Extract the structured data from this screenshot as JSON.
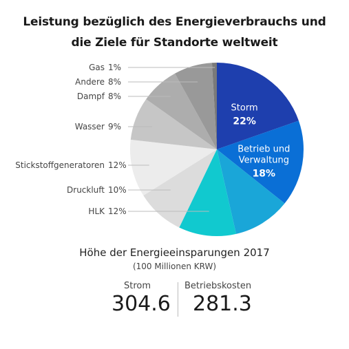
{
  "chart_data": {
    "type": "pie",
    "title_line1": "Leistung bezüglich des Energieverbrauchs und",
    "title_line2": "die Ziele für Standorte weltweit",
    "slices": [
      {
        "label": "Storm",
        "value": 22,
        "display": "22%",
        "color": "#1e3fae",
        "inside": true
      },
      {
        "label": "Betrieb und Verwaltung",
        "label_lines": [
          "Betrieb und",
          "Verwaltung"
        ],
        "value": 18,
        "display": "18%",
        "color": "#0a6fd6",
        "inside": true
      },
      {
        "label": "",
        "value": 12,
        "display": "",
        "color": "#1aa6d8",
        "inside": true
      },
      {
        "label": "HLK",
        "value": 12,
        "display": "12%",
        "color": "#11c9cf",
        "inside": false
      },
      {
        "label": "Druckluft",
        "value": 10,
        "display": "10%",
        "color": "#dcdcdc",
        "inside": false
      },
      {
        "label": "Stickstoffgeneratoren",
        "value": 12,
        "display": "12%",
        "color": "#ececec",
        "inside": false
      },
      {
        "label": "Wasser",
        "value": 9,
        "display": "9%",
        "color": "#c6c6c6",
        "inside": false
      },
      {
        "label": "Dampf",
        "value": 8,
        "display": "8%",
        "color": "#adadad",
        "inside": false
      },
      {
        "label": "Andere",
        "value": 8,
        "display": "8%",
        "color": "#999999",
        "inside": false
      },
      {
        "label": "Gas",
        "value": 1,
        "display": "1%",
        "color": "#7a7a7a",
        "inside": false
      }
    ]
  },
  "savings": {
    "title": "Höhe der Energieeinsparungen 2017",
    "unit": "(100 Millionen KRW)",
    "left_label": "Strom",
    "left_value": "304.6",
    "right_label": "Betriebskosten",
    "right_value": "281.3"
  }
}
